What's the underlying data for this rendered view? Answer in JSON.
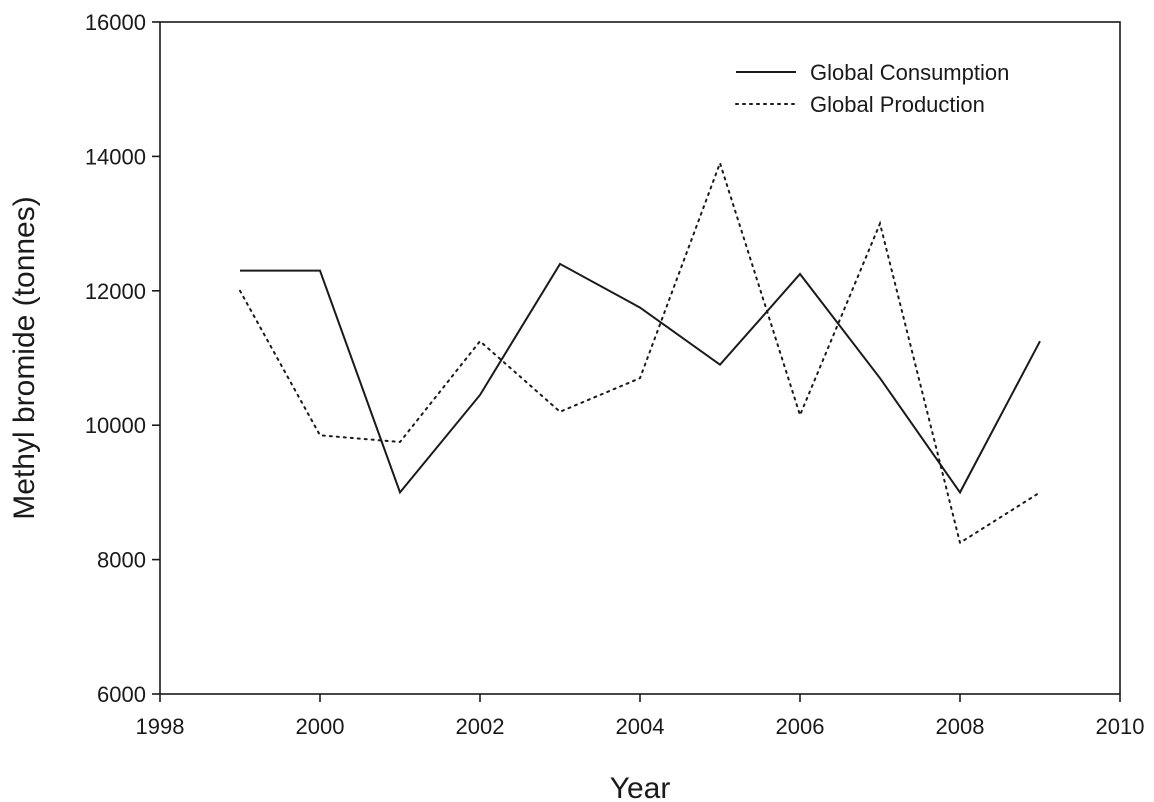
{
  "chart_data": {
    "type": "line",
    "xlabel": "Year",
    "ylabel": "Methyl bromide (tonnes)",
    "xlim": [
      1998,
      2010
    ],
    "ylim": [
      6000,
      16000
    ],
    "x_ticks": [
      "1998",
      "2000",
      "2002",
      "2004",
      "2006",
      "2008",
      "2010"
    ],
    "y_ticks": [
      "6000",
      "8000",
      "10000",
      "12000",
      "14000",
      "16000"
    ],
    "grid": false,
    "legend_position": "top-right",
    "line_color": "#1a1a1a",
    "series": [
      {
        "name": "Global Consumption",
        "style": "solid",
        "x": [
          1999,
          2000,
          2001,
          2002,
          2003,
          2004,
          2005,
          2006,
          2007,
          2008,
          2009
        ],
        "values": [
          12300,
          12300,
          9000,
          10450,
          12400,
          11750,
          10900,
          12250,
          10700,
          9000,
          11250
        ]
      },
      {
        "name": "Global Production",
        "style": "dotted",
        "x": [
          1999,
          2000,
          2001,
          2002,
          2003,
          2004,
          2005,
          2006,
          2007,
          2008,
          2009
        ],
        "values": [
          12000,
          9850,
          9750,
          11250,
          10200,
          10700,
          13900,
          10150,
          13000,
          8250,
          9000
        ]
      }
    ]
  }
}
